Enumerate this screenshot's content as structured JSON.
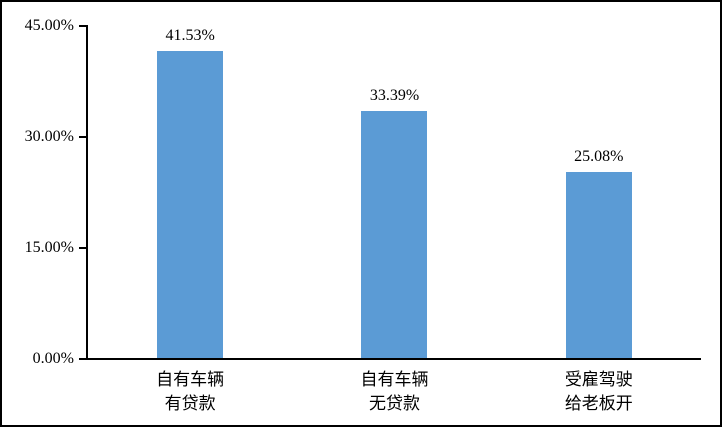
{
  "chart_data": {
    "type": "bar",
    "title": "",
    "xlabel": "",
    "ylabel": "",
    "categories": [
      "自有车辆\n有贷款",
      "自有车辆\n无贷款",
      "受雇驾驶\n给老板开"
    ],
    "values": [
      41.53,
      33.39,
      25.08
    ],
    "value_labels": [
      "41.53%",
      "33.39%",
      "25.08%"
    ],
    "ylim": [
      0,
      45
    ],
    "y_ticks": [
      {
        "value": 45,
        "label": "45.00%"
      },
      {
        "value": 30,
        "label": "30.00%"
      },
      {
        "value": 15,
        "label": "15.00%"
      },
      {
        "value": 0,
        "label": "0.00%"
      }
    ],
    "grid": false,
    "legend": false,
    "bar_color": "#5B9BD5",
    "axis_color": "#000000",
    "text_color": "#000000"
  }
}
